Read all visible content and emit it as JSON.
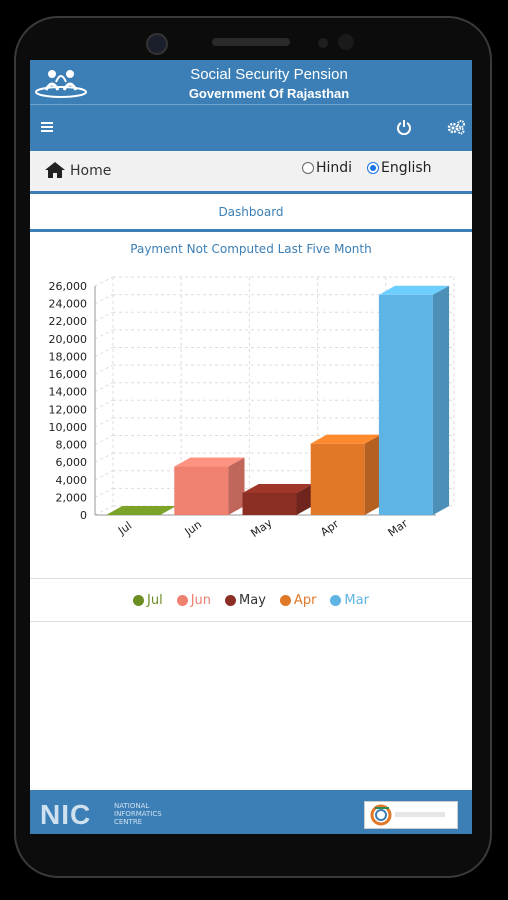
{
  "header": {
    "title": "Social Security Pension",
    "subtitle": "Government Of Rajasthan"
  },
  "nav": {
    "home": "Home",
    "lang_hindi": "Hindi",
    "lang_english": "English",
    "selected_lang": "English"
  },
  "tab": {
    "label": "Dashboard"
  },
  "footer": {
    "nic_abbr": "NIC",
    "nic_line1": "NATIONAL",
    "nic_line2": "INFORMATICS",
    "nic_line3": "CENTRE"
  },
  "icons": {
    "menu": "menu-icon",
    "power": "power-icon",
    "settings": "gear-icon",
    "home": "home-icon"
  },
  "colors": {
    "header": "#3b7fb6",
    "jul": "#6b8e23",
    "jun": "#f08070",
    "may": "#8b2e24",
    "apr": "#e07828",
    "mar": "#5fb4e6"
  },
  "chart_data": {
    "type": "bar",
    "title": "Payment Not Computed Last Five Month",
    "categories": [
      "Jul",
      "Jun",
      "May",
      "Apr",
      "Mar"
    ],
    "values": [
      0,
      5500,
      2500,
      8100,
      25000
    ],
    "ylim": [
      0,
      26000
    ],
    "yticks": [
      "0",
      "2,000",
      "4,000",
      "6,000",
      "8,000",
      "10,000",
      "12,000",
      "14,000",
      "16,000",
      "18,000",
      "20,000",
      "22,000",
      "24,000",
      "26,000"
    ],
    "legend": [
      "Jul",
      "Jun",
      "May",
      "Apr",
      "Mar"
    ],
    "legend_placement": "bottom",
    "grid": true
  }
}
